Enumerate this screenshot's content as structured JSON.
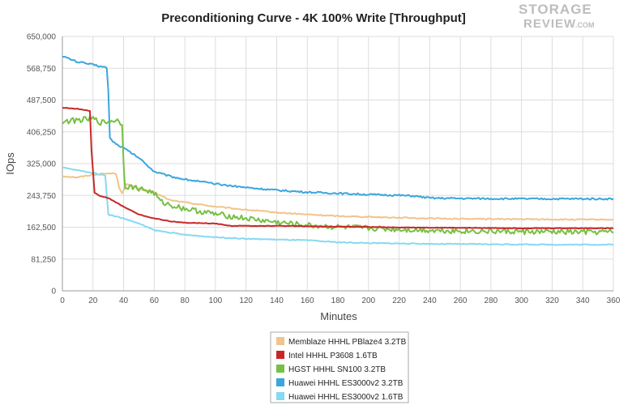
{
  "logo": {
    "line1": "STORAGE",
    "line2": "REVIEW",
    "suffix": ".COM"
  },
  "chart_data": {
    "type": "line",
    "title": "Preconditioning Curve - 4K 100% Write [Throughput]",
    "xlabel": "Minutes",
    "ylabel": "IOps",
    "xlim": [
      0,
      360
    ],
    "ylim": [
      0,
      650000
    ],
    "x_ticks": [
      0,
      20,
      40,
      60,
      80,
      100,
      120,
      140,
      160,
      180,
      200,
      220,
      240,
      260,
      280,
      300,
      320,
      340,
      360
    ],
    "y_ticks": [
      0,
      81250,
      162500,
      243750,
      325000,
      406250,
      487500,
      568750,
      650000
    ],
    "y_tick_labels": [
      "0",
      "81,250",
      "162,500",
      "243,750",
      "325,000",
      "406,250",
      "487,500",
      "568,750",
      "650,000"
    ],
    "grid": true,
    "legend_position": "bottom-center",
    "series": [
      {
        "name": "Memblaze HHHL PBlaze4 3.2TB",
        "color": "#f0c48a",
        "noise": 1500,
        "points": [
          [
            0,
            293000
          ],
          [
            10,
            290000
          ],
          [
            20,
            297000
          ],
          [
            30,
            300000
          ],
          [
            35,
            300000
          ],
          [
            37,
            265000
          ],
          [
            39,
            250000
          ],
          [
            42,
            272000
          ],
          [
            50,
            262000
          ],
          [
            60,
            252000
          ],
          [
            70,
            232000
          ],
          [
            80,
            226000
          ],
          [
            100,
            215000
          ],
          [
            120,
            207000
          ],
          [
            140,
            200000
          ],
          [
            160,
            195000
          ],
          [
            180,
            191000
          ],
          [
            200,
            189000
          ],
          [
            220,
            187000
          ],
          [
            240,
            185000
          ],
          [
            260,
            184000
          ],
          [
            300,
            183000
          ],
          [
            330,
            182000
          ],
          [
            360,
            182000
          ]
        ]
      },
      {
        "name": "Intel HHHL P3608 1.6TB",
        "color": "#c62828",
        "noise": 700,
        "points": [
          [
            0,
            468000
          ],
          [
            10,
            465000
          ],
          [
            18,
            460000
          ],
          [
            19,
            360000
          ],
          [
            21,
            250000
          ],
          [
            25,
            242000
          ],
          [
            30,
            237000
          ],
          [
            40,
            215000
          ],
          [
            45,
            205000
          ],
          [
            50,
            195000
          ],
          [
            60,
            185000
          ],
          [
            70,
            178000
          ],
          [
            80,
            174000
          ],
          [
            100,
            172000
          ],
          [
            110,
            166000
          ],
          [
            140,
            166000
          ],
          [
            180,
            164000
          ],
          [
            220,
            162000
          ],
          [
            260,
            161000
          ],
          [
            300,
            160000
          ],
          [
            360,
            160000
          ]
        ]
      },
      {
        "name": "HGST HHHL SN100 3.2TB",
        "color": "#76c043",
        "noise": 7000,
        "points": [
          [
            0,
            432000
          ],
          [
            10,
            436000
          ],
          [
            20,
            440000
          ],
          [
            25,
            430000
          ],
          [
            30,
            432000
          ],
          [
            35,
            437000
          ],
          [
            39,
            428000
          ],
          [
            40,
            320000
          ],
          [
            41,
            268000
          ],
          [
            50,
            262000
          ],
          [
            60,
            250000
          ],
          [
            64,
            228000
          ],
          [
            70,
            220000
          ],
          [
            80,
            210000
          ],
          [
            100,
            196000
          ],
          [
            120,
            185000
          ],
          [
            140,
            175000
          ],
          [
            160,
            167000
          ],
          [
            180,
            163000
          ],
          [
            200,
            160000
          ],
          [
            220,
            157000
          ],
          [
            240,
            155000
          ],
          [
            260,
            153000
          ],
          [
            300,
            151000
          ],
          [
            330,
            150000
          ],
          [
            360,
            150000
          ]
        ]
      },
      {
        "name": "Huawei HHHL ES3000v2 3.2TB",
        "color": "#3aa6dd",
        "noise": 2200,
        "points": [
          [
            0,
            600000
          ],
          [
            5,
            592000
          ],
          [
            10,
            585000
          ],
          [
            20,
            578000
          ],
          [
            29,
            570000
          ],
          [
            30,
            510000
          ],
          [
            31,
            390000
          ],
          [
            35,
            375000
          ],
          [
            40,
            365000
          ],
          [
            50,
            340000
          ],
          [
            60,
            305000
          ],
          [
            70,
            293000
          ],
          [
            80,
            285000
          ],
          [
            100,
            273000
          ],
          [
            120,
            264000
          ],
          [
            140,
            257000
          ],
          [
            160,
            252000
          ],
          [
            180,
            249000
          ],
          [
            200,
            246000
          ],
          [
            220,
            244000
          ],
          [
            230,
            242000
          ],
          [
            240,
            237000
          ],
          [
            260,
            236000
          ],
          [
            300,
            235000
          ],
          [
            360,
            235000
          ]
        ]
      },
      {
        "name": "Huawei HHHL ES3000v2 1.6TB",
        "color": "#86d9f2",
        "noise": 1200,
        "points": [
          [
            0,
            315000
          ],
          [
            10,
            308000
          ],
          [
            20,
            301000
          ],
          [
            28,
            295000
          ],
          [
            29,
            245000
          ],
          [
            30,
            195000
          ],
          [
            40,
            185000
          ],
          [
            50,
            172000
          ],
          [
            60,
            155000
          ],
          [
            80,
            143000
          ],
          [
            100,
            137000
          ],
          [
            120,
            133000
          ],
          [
            140,
            131000
          ],
          [
            160,
            129000
          ],
          [
            180,
            124000
          ],
          [
            200,
            122000
          ],
          [
            240,
            120000
          ],
          [
            280,
            119000
          ],
          [
            320,
            118000
          ],
          [
            360,
            118000
          ]
        ]
      }
    ]
  }
}
